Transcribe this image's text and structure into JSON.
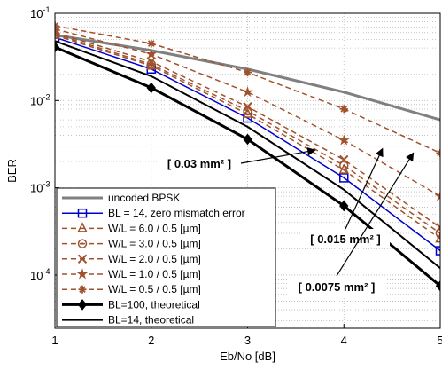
{
  "chart_data": {
    "type": "line",
    "xlabel": "Eb/No [dB]",
    "ylabel": "BER",
    "xlim": [
      1,
      5
    ],
    "ylim": [
      1e-05,
      0.1
    ],
    "yscale": "log",
    "grid": true,
    "legend_position": "bottom-left",
    "x": [
      1,
      2,
      3,
      4,
      5
    ],
    "x_tick_labels": [
      "1",
      "2",
      "3",
      "4",
      "5"
    ],
    "y_ticks": [
      {
        "base": "10",
        "exp": "-1",
        "value": 0.1
      },
      {
        "base": "10",
        "exp": "-2",
        "value": 0.01
      },
      {
        "base": "10",
        "exp": "-3",
        "value": 0.001
      },
      {
        "base": "10",
        "exp": "-4",
        "value": 0.0001
      }
    ],
    "series": [
      {
        "name": "uncoded BPSK",
        "color": "#808080",
        "dash": "solid",
        "marker": "none",
        "width": 3,
        "values": [
          0.0563,
          0.0375,
          0.0229,
          0.0125,
          0.006
        ]
      },
      {
        "name": "BL = 14, zero mismatch error",
        "color": "#0000cc",
        "dash": "solid",
        "marker": "square",
        "width": 1.5,
        "values": [
          0.053,
          0.023,
          0.0063,
          0.0013,
          0.00019
        ]
      },
      {
        "name": "W/L = 6.0 / 0.5 [µm]",
        "color": "#a0522d",
        "dash": "dashed",
        "marker": "triangle",
        "width": 1.5,
        "values": [
          0.056,
          0.025,
          0.007,
          0.0016,
          0.00026
        ]
      },
      {
        "name": "W/L = 3.0 / 0.5 [µm]",
        "color": "#a0522d",
        "dash": "dashed",
        "marker": "circle",
        "width": 1.5,
        "values": [
          0.058,
          0.026,
          0.0076,
          0.0018,
          0.0003
        ]
      },
      {
        "name": "W/L = 2.0 / 0.5 [µm]",
        "color": "#a0522d",
        "dash": "dashed",
        "marker": "x",
        "width": 1.5,
        "values": [
          0.06,
          0.028,
          0.0085,
          0.0021,
          0.00035
        ]
      },
      {
        "name": "W/L = 1.0 / 0.5 [µm]",
        "color": "#a0522d",
        "dash": "dashed",
        "marker": "star",
        "width": 1.5,
        "values": [
          0.066,
          0.034,
          0.0125,
          0.0035,
          0.0008
        ]
      },
      {
        "name": "W/L = 0.5 / 0.5 [µm]",
        "color": "#a0522d",
        "dash": "dashed",
        "marker": "asterisk",
        "width": 1.5,
        "values": [
          0.072,
          0.045,
          0.021,
          0.008,
          0.0025
        ]
      },
      {
        "name": "BL=100, theoretical",
        "color": "#000000",
        "dash": "solid",
        "marker": "diamond",
        "width": 3,
        "values": [
          0.041,
          0.014,
          0.0036,
          0.00062,
          7.5e-05
        ]
      },
      {
        "name": "BL=14,   theoretical",
        "color": "#000000",
        "dash": "solid",
        "marker": "none",
        "width": 2,
        "values": [
          0.048,
          0.019,
          0.005,
          0.00095,
          0.00012
        ]
      }
    ],
    "annotations": [
      {
        "text": "[ 0.03 mm² ]",
        "arrow_to": [
          3.7,
          0.0027
        ]
      },
      {
        "text": "[ 0.015 mm² ]",
        "arrow_to": [
          4.4,
          0.0028
        ]
      },
      {
        "text": "[ 0.0075 mm² ]",
        "arrow_to": [
          4.72,
          0.0025
        ]
      }
    ]
  }
}
